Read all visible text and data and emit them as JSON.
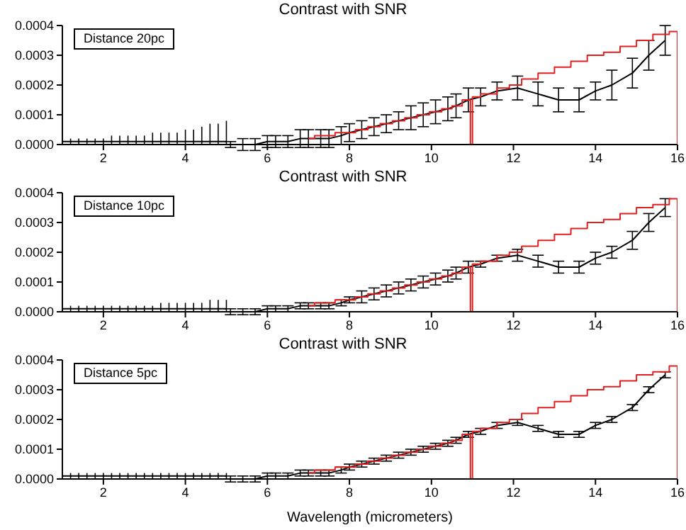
{
  "chart_data": [
    {
      "type": "line",
      "title": "Contrast with SNR",
      "annotations": [
        "Distance 20pc"
      ],
      "xlim": [
        1,
        16
      ],
      "xticks": [
        2,
        4,
        6,
        8,
        10,
        12,
        14,
        16
      ],
      "ylim": [
        0,
        0.0004
      ],
      "yticks": [
        {
          "value": 0,
          "label": "0.0000"
        },
        {
          "value": 0.0001,
          "label": "0.0001"
        },
        {
          "value": 0.0002,
          "label": "0.0002"
        },
        {
          "value": 0.0003,
          "label": "0.0003"
        },
        {
          "value": 0.0004,
          "label": "0.0004"
        }
      ],
      "series": [
        {
          "type": "line",
          "color": "#000000",
          "x": [
            1,
            1.2,
            1.4,
            1.6,
            1.8,
            2,
            2.2,
            2.4,
            2.6,
            2.8,
            3,
            3.2,
            3.4,
            3.6,
            3.8,
            4,
            4.2,
            4.4,
            4.6,
            4.8,
            5
          ],
          "values": [
            1e-05,
            1e-05,
            1e-05,
            1e-05,
            1e-05,
            1e-05,
            1e-05,
            1e-05,
            1e-05,
            1e-05,
            1e-05,
            1e-05,
            1e-05,
            1e-05,
            1e-05,
            1e-05,
            1e-05,
            1e-05,
            1e-05,
            1e-05,
            1e-05
          ],
          "errors": [
            [
              0,
              2e-05
            ],
            [
              0,
              2e-05
            ],
            [
              0,
              2e-05
            ],
            [
              0,
              2e-05
            ],
            [
              0,
              2e-05
            ],
            [
              0,
              2e-05
            ],
            [
              0,
              3e-05
            ],
            [
              0,
              3e-05
            ],
            [
              0,
              3e-05
            ],
            [
              0,
              3e-05
            ],
            [
              0,
              3e-05
            ],
            [
              0,
              4e-05
            ],
            [
              0,
              4e-05
            ],
            [
              0,
              4e-05
            ],
            [
              0,
              4e-05
            ],
            [
              0,
              5e-05
            ],
            [
              0,
              5e-05
            ],
            [
              0,
              6e-05
            ],
            [
              0,
              7e-05
            ],
            [
              0,
              7e-05
            ],
            [
              0,
              8e-05
            ]
          ]
        },
        {
          "type": "line",
          "color": "#000000",
          "x": [
            5.1,
            5.4,
            5.7,
            6.0,
            6.2,
            6.5,
            6.8,
            7.0,
            7.3,
            7.5,
            7.8,
            8.0,
            8.3,
            8.6,
            8.9,
            9.2,
            9.5,
            9.8,
            10.1,
            10.4,
            10.6,
            10.9,
            11.2,
            11.6,
            12.1,
            12.6,
            13.1,
            13.6,
            14.0,
            14.4,
            14.9,
            15.3,
            15.7
          ],
          "values": [
            0,
            0,
            0,
            1e-05,
            1e-05,
            1e-05,
            2e-05,
            2e-05,
            2e-05,
            2e-05,
            3e-05,
            4e-05,
            5e-05,
            6e-05,
            7e-05,
            8e-05,
            9e-05,
            0.0001,
            0.00011,
            0.00012,
            0.00013,
            0.00015,
            0.00016,
            0.00018,
            0.00019,
            0.00017,
            0.00015,
            0.00015,
            0.00018,
            0.0002,
            0.00024,
            0.0003,
            0.00035
          ],
          "errors": [
            1e-05,
            2e-05,
            2e-05,
            2e-05,
            2e-05,
            2e-05,
            3e-05,
            3e-05,
            3e-05,
            3e-05,
            3e-05,
            3e-05,
            3e-05,
            3e-05,
            3e-05,
            3e-05,
            4e-05,
            4e-05,
            4e-05,
            4e-05,
            4e-05,
            4e-05,
            3e-05,
            3e-05,
            4e-05,
            4e-05,
            4e-05,
            4e-05,
            3e-05,
            5e-05,
            5e-05,
            5e-05,
            5e-05
          ]
        },
        {
          "type": "step",
          "color": "#e02020",
          "x": [
            7.0,
            7.3,
            7.5,
            7.8,
            8.0,
            8.3,
            8.6,
            8.9,
            9.2,
            9.5,
            9.8,
            10.1,
            10.4,
            10.6,
            10.9,
            11,
            11,
            11.4,
            11.8,
            12.0,
            12.4,
            12.8,
            13.2,
            13.6,
            14.0,
            14.4,
            14.8,
            15.2,
            15.6,
            16,
            16
          ],
          "values": [
            2e-05,
            3e-05,
            3e-05,
            4e-05,
            4e-05,
            5e-05,
            6e-05,
            7e-05,
            8e-05,
            9e-05,
            0.0001,
            0.00011,
            0.00012,
            0.00013,
            0.00015,
            0,
            0.00016,
            0.00017,
            0.00019,
            0.0002,
            0.00022,
            0.00024,
            0.00026,
            0.00028,
            0.0003,
            0.00031,
            0.00033,
            0.00035,
            0.00037,
            0.00038,
            0
          ]
        }
      ]
    },
    {
      "type": "line",
      "title": "Contrast with SNR",
      "annotations": [
        "Distance 10pc"
      ],
      "xlim": [
        1,
        16
      ],
      "xticks": [
        2,
        4,
        6,
        8,
        10,
        12,
        14,
        16
      ],
      "ylim": [
        0,
        0.0004
      ],
      "yticks": [
        {
          "value": 0,
          "label": "0.0000"
        },
        {
          "value": 0.0001,
          "label": "0.0001"
        },
        {
          "value": 0.0002,
          "label": "0.0002"
        },
        {
          "value": 0.0003,
          "label": "0.0003"
        },
        {
          "value": 0.0004,
          "label": "0.0004"
        }
      ],
      "series": [
        {
          "type": "line",
          "color": "#000000",
          "x": [
            1,
            1.2,
            1.4,
            1.6,
            1.8,
            2,
            2.2,
            2.4,
            2.6,
            2.8,
            3,
            3.2,
            3.4,
            3.6,
            3.8,
            4,
            4.2,
            4.4,
            4.6,
            4.8,
            5
          ],
          "values": [
            1e-05,
            1e-05,
            1e-05,
            1e-05,
            1e-05,
            1e-05,
            1e-05,
            1e-05,
            1e-05,
            1e-05,
            1e-05,
            1e-05,
            1e-05,
            1e-05,
            1e-05,
            1e-05,
            1e-05,
            1e-05,
            1e-05,
            1e-05,
            1e-05
          ],
          "errors": [
            [
              0,
              2e-05
            ],
            [
              0,
              2e-05
            ],
            [
              0,
              2e-05
            ],
            [
              0,
              2e-05
            ],
            [
              0,
              2e-05
            ],
            [
              0,
              2e-05
            ],
            [
              0,
              2e-05
            ],
            [
              0,
              2e-05
            ],
            [
              0,
              2e-05
            ],
            [
              0,
              2e-05
            ],
            [
              0,
              2e-05
            ],
            [
              0,
              2e-05
            ],
            [
              0,
              3e-05
            ],
            [
              0,
              3e-05
            ],
            [
              0,
              3e-05
            ],
            [
              0,
              3e-05
            ],
            [
              0,
              3e-05
            ],
            [
              0,
              3e-05
            ],
            [
              0,
              4e-05
            ],
            [
              0,
              4e-05
            ],
            [
              0,
              4e-05
            ]
          ]
        },
        {
          "type": "line",
          "color": "#000000",
          "x": [
            5.1,
            5.4,
            5.7,
            6.0,
            6.2,
            6.5,
            6.8,
            7.0,
            7.3,
            7.5,
            7.8,
            8.0,
            8.3,
            8.6,
            8.9,
            9.2,
            9.5,
            9.8,
            10.1,
            10.4,
            10.6,
            10.9,
            11.2,
            11.6,
            12.1,
            12.6,
            13.1,
            13.6,
            14.0,
            14.4,
            14.9,
            15.3,
            15.7
          ],
          "values": [
            0,
            0,
            0,
            1e-05,
            1e-05,
            1e-05,
            2e-05,
            2e-05,
            2e-05,
            2e-05,
            3e-05,
            4e-05,
            5e-05,
            6e-05,
            7e-05,
            8e-05,
            9e-05,
            0.0001,
            0.00011,
            0.00012,
            0.00013,
            0.00015,
            0.00016,
            0.00018,
            0.00019,
            0.00017,
            0.00015,
            0.00015,
            0.00018,
            0.0002,
            0.00024,
            0.0003,
            0.00035
          ],
          "errors": [
            1e-05,
            1e-05,
            1e-05,
            1e-05,
            1e-05,
            1e-05,
            1e-05,
            1e-05,
            1e-05,
            1e-05,
            1e-05,
            1e-05,
            2e-05,
            2e-05,
            2e-05,
            2e-05,
            2e-05,
            2e-05,
            2e-05,
            2e-05,
            2e-05,
            2e-05,
            1e-05,
            1e-05,
            2e-05,
            2e-05,
            2e-05,
            2e-05,
            2e-05,
            2e-05,
            3e-05,
            3e-05,
            3e-05
          ]
        },
        {
          "type": "step",
          "color": "#e02020",
          "x": [
            7.0,
            7.3,
            7.5,
            7.8,
            8.0,
            8.3,
            8.6,
            8.9,
            9.2,
            9.5,
            9.8,
            10.1,
            10.4,
            10.6,
            10.9,
            11,
            11,
            11.4,
            11.8,
            12.0,
            12.4,
            12.8,
            13.2,
            13.6,
            14.0,
            14.4,
            14.8,
            15.2,
            15.6,
            16,
            16
          ],
          "values": [
            2e-05,
            3e-05,
            3e-05,
            4e-05,
            4e-05,
            5e-05,
            6e-05,
            7e-05,
            8e-05,
            9e-05,
            0.0001,
            0.00011,
            0.00012,
            0.00013,
            0.00015,
            0,
            0.00016,
            0.00017,
            0.00019,
            0.0002,
            0.00022,
            0.00024,
            0.00026,
            0.00028,
            0.0003,
            0.00031,
            0.00033,
            0.00035,
            0.00036,
            0.00038,
            0
          ]
        }
      ]
    },
    {
      "type": "line",
      "title": "Contrast with SNR",
      "xlabel": "Wavelength (micrometers)",
      "annotations": [
        "Distance 5pc"
      ],
      "xlim": [
        1,
        16
      ],
      "xticks": [
        2,
        4,
        6,
        8,
        10,
        12,
        14,
        16
      ],
      "ylim": [
        0,
        0.0004
      ],
      "yticks": [
        {
          "value": 0,
          "label": "0.0000"
        },
        {
          "value": 0.0001,
          "label": "0.0001"
        },
        {
          "value": 0.0002,
          "label": "0.0002"
        },
        {
          "value": 0.0003,
          "label": "0.0003"
        },
        {
          "value": 0.0004,
          "label": "0.0004"
        }
      ],
      "series": [
        {
          "type": "line",
          "color": "#000000",
          "x": [
            1,
            1.2,
            1.4,
            1.6,
            1.8,
            2,
            2.2,
            2.4,
            2.6,
            2.8,
            3,
            3.2,
            3.4,
            3.6,
            3.8,
            4,
            4.2,
            4.4,
            4.6,
            4.8,
            5
          ],
          "values": [
            1e-05,
            1e-05,
            1e-05,
            1e-05,
            1e-05,
            1e-05,
            1e-05,
            1e-05,
            1e-05,
            1e-05,
            1e-05,
            1e-05,
            1e-05,
            1e-05,
            1e-05,
            1e-05,
            1e-05,
            1e-05,
            1e-05,
            1e-05,
            1e-05
          ],
          "errors": [
            [
              0,
              2e-05
            ],
            [
              0,
              2e-05
            ],
            [
              0,
              2e-05
            ],
            [
              0,
              2e-05
            ],
            [
              0,
              2e-05
            ],
            [
              0,
              2e-05
            ],
            [
              0,
              2e-05
            ],
            [
              0,
              2e-05
            ],
            [
              0,
              2e-05
            ],
            [
              0,
              2e-05
            ],
            [
              0,
              2e-05
            ],
            [
              0,
              2e-05
            ],
            [
              0,
              2e-05
            ],
            [
              0,
              2e-05
            ],
            [
              0,
              2e-05
            ],
            [
              0,
              2e-05
            ],
            [
              0,
              2e-05
            ],
            [
              0,
              2e-05
            ],
            [
              0,
              2e-05
            ],
            [
              0,
              2e-05
            ],
            [
              0,
              2e-05
            ]
          ]
        },
        {
          "type": "line",
          "color": "#000000",
          "x": [
            5.1,
            5.4,
            5.7,
            6.0,
            6.2,
            6.5,
            6.8,
            7.0,
            7.3,
            7.5,
            7.8,
            8.0,
            8.3,
            8.6,
            8.9,
            9.2,
            9.5,
            9.8,
            10.1,
            10.4,
            10.6,
            10.9,
            11.2,
            11.6,
            12.1,
            12.6,
            13.1,
            13.6,
            14.0,
            14.4,
            14.9,
            15.3,
            15.7
          ],
          "values": [
            0,
            0,
            0,
            1e-05,
            1e-05,
            1e-05,
            2e-05,
            2e-05,
            2e-05,
            2e-05,
            3e-05,
            4e-05,
            5e-05,
            6e-05,
            7e-05,
            8e-05,
            9e-05,
            0.0001,
            0.00011,
            0.00012,
            0.00013,
            0.00015,
            0.00016,
            0.00018,
            0.00019,
            0.00017,
            0.00015,
            0.00015,
            0.00018,
            0.0002,
            0.00024,
            0.0003,
            0.00035
          ],
          "errors": [
            1e-05,
            1e-05,
            1e-05,
            1e-05,
            1e-05,
            1e-05,
            1e-05,
            1e-05,
            1e-05,
            1e-05,
            1e-05,
            1e-05,
            1e-05,
            1e-05,
            1e-05,
            1e-05,
            1e-05,
            1e-05,
            1e-05,
            1e-05,
            1e-05,
            1e-05,
            1e-05,
            1e-05,
            1e-05,
            1e-05,
            1e-05,
            1e-05,
            1e-05,
            1e-05,
            1e-05,
            1e-05,
            1e-05
          ]
        },
        {
          "type": "step",
          "color": "#e02020",
          "x": [
            7.0,
            7.3,
            7.5,
            7.8,
            8.0,
            8.3,
            8.6,
            8.9,
            9.2,
            9.5,
            9.8,
            10.1,
            10.4,
            10.6,
            10.9,
            11,
            11,
            11.4,
            11.8,
            12.0,
            12.4,
            12.8,
            13.2,
            13.6,
            14.0,
            14.4,
            14.8,
            15.2,
            15.6,
            16,
            16
          ],
          "values": [
            2e-05,
            3e-05,
            3e-05,
            4e-05,
            4e-05,
            5e-05,
            6e-05,
            7e-05,
            8e-05,
            9e-05,
            0.0001,
            0.00011,
            0.00012,
            0.00013,
            0.00015,
            0,
            0.00016,
            0.00017,
            0.00019,
            0.0002,
            0.00022,
            0.00024,
            0.00026,
            0.00028,
            0.0003,
            0.00031,
            0.00033,
            0.00035,
            0.00036,
            0.00038,
            0
          ]
        }
      ]
    }
  ]
}
